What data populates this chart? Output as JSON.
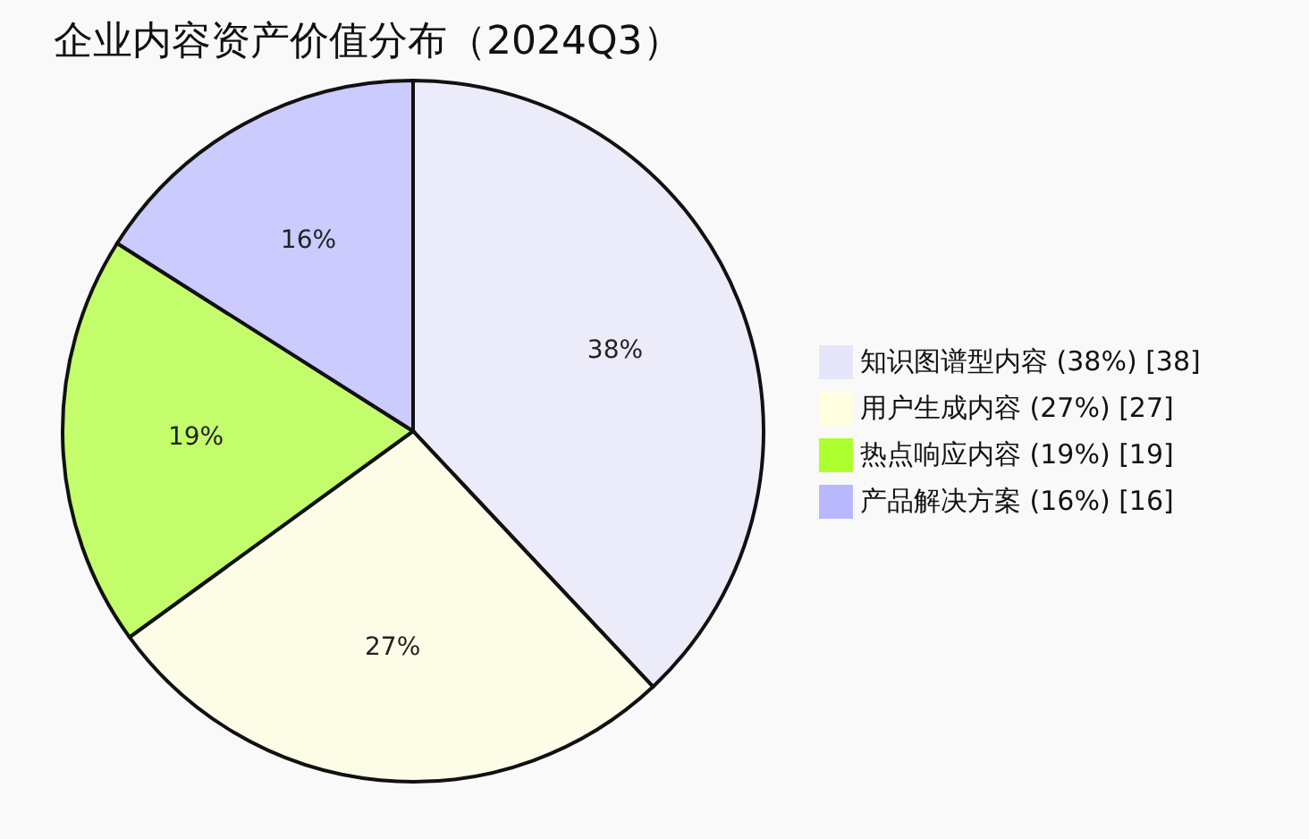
{
  "chart_data": {
    "type": "pie",
    "title": "企业内容资产价值分布（2024Q3）",
    "categories": [
      "知识图谱型内容 (38%) [38]",
      "用户生成内容 (27%) [27]",
      "热点响应内容 (19%) [19]",
      "产品解决方案 (16%) [16]"
    ],
    "values": [
      38,
      27,
      19,
      16
    ],
    "value_labels": [
      "38%",
      "27%",
      "19%",
      "16%"
    ],
    "colors": [
      "#e6e6fa",
      "#ffffe0",
      "#adff2f",
      "#b8b8ff"
    ],
    "legend": "right"
  }
}
